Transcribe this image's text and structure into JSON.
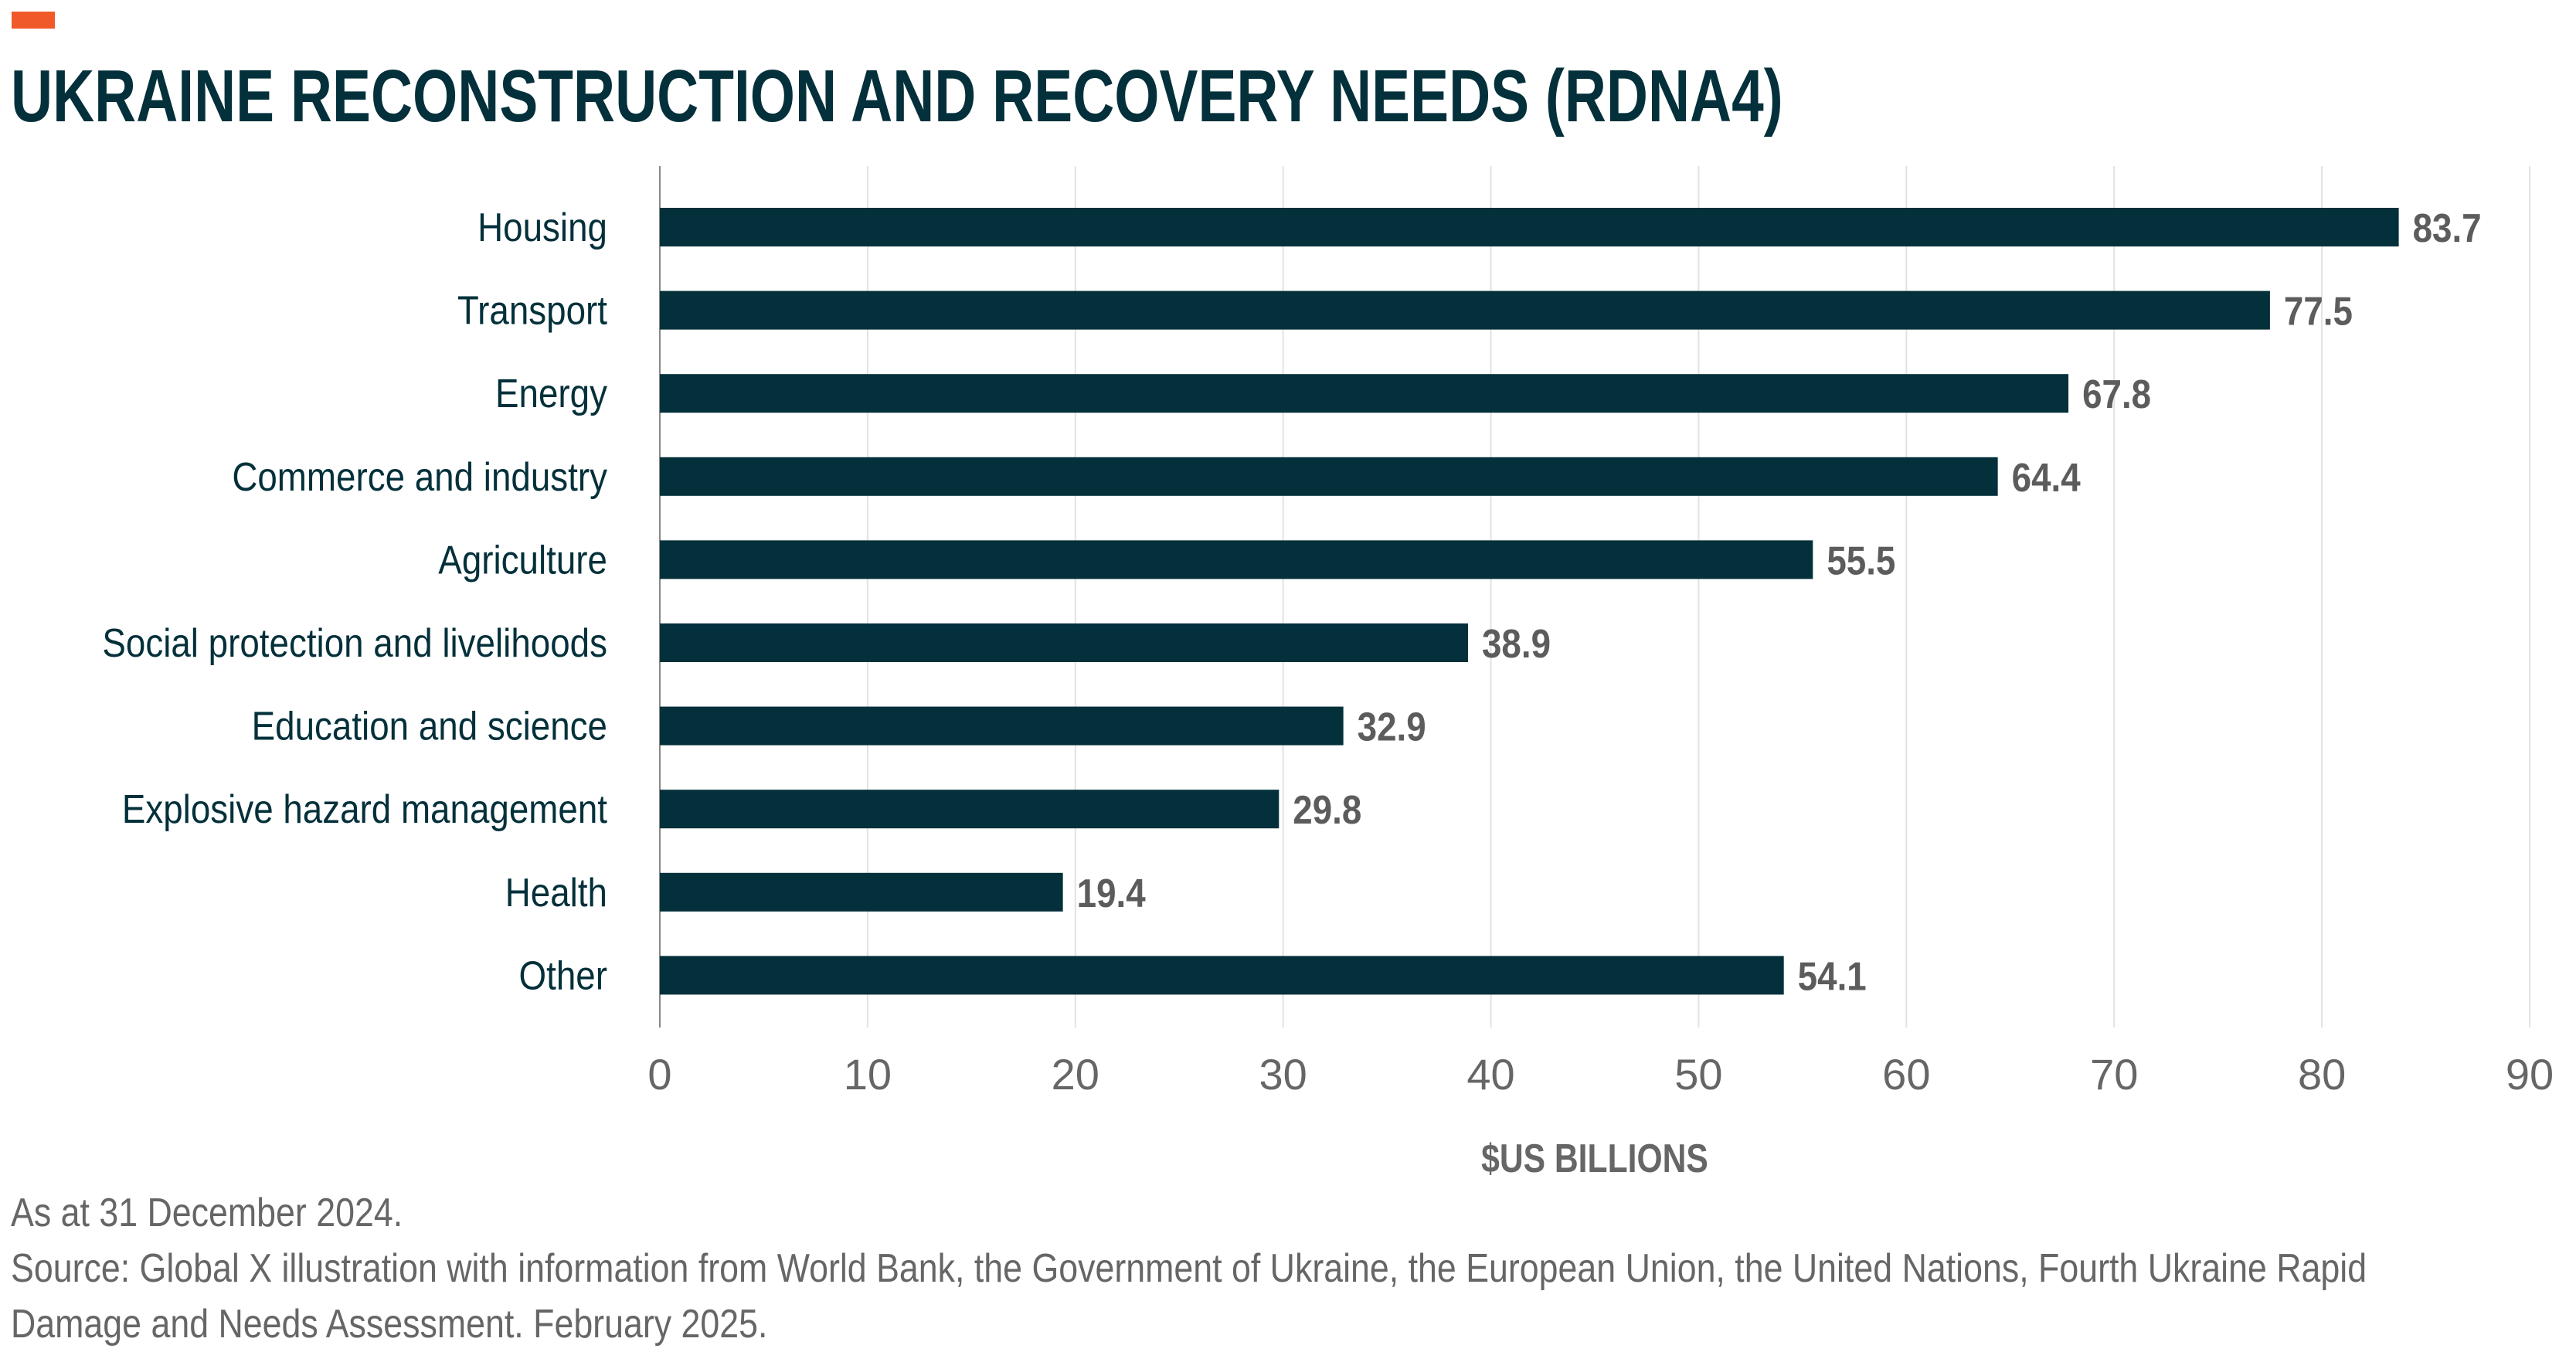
{
  "header": {
    "title": "UKRAINE RECONSTRUCTION AND RECOVERY NEEDS (RDNA4)",
    "accent_color": "#f05a28"
  },
  "chart_data": {
    "type": "bar",
    "orientation": "horizontal",
    "title": "UKRAINE RECONSTRUCTION AND RECOVERY NEEDS (RDNA4)",
    "categories": [
      "Housing",
      "Transport",
      "Energy",
      "Commerce and industry",
      "Agriculture",
      "Social protection and livelihoods",
      "Education and science",
      "Explosive hazard management",
      "Health",
      "Other"
    ],
    "values": [
      83.7,
      77.5,
      67.8,
      64.4,
      55.5,
      38.9,
      32.9,
      29.8,
      19.4,
      54.1
    ],
    "data_labels": [
      "83.7",
      "77.5",
      "67.8",
      "64.4",
      "55.5",
      "38.9",
      "32.9",
      "29.8",
      "19.4",
      "54.1"
    ],
    "xlabel": "$US BILLIONS",
    "ylabel": "",
    "xlim": [
      0,
      90
    ],
    "xticks": [
      "0",
      "10",
      "20",
      "30",
      "40",
      "50",
      "60",
      "70",
      "80",
      "90"
    ],
    "grid": true,
    "bar_color": "#03303a"
  },
  "footnotes": {
    "date": "As at 31 December 2024.",
    "source_line1": "Source: Global X illustration with information from World Bank, the Government of Ukraine, the European Union, the United Nations, Fourth Ukraine Rapid",
    "source_line2": "Damage and Needs Assessment. February 2025."
  }
}
